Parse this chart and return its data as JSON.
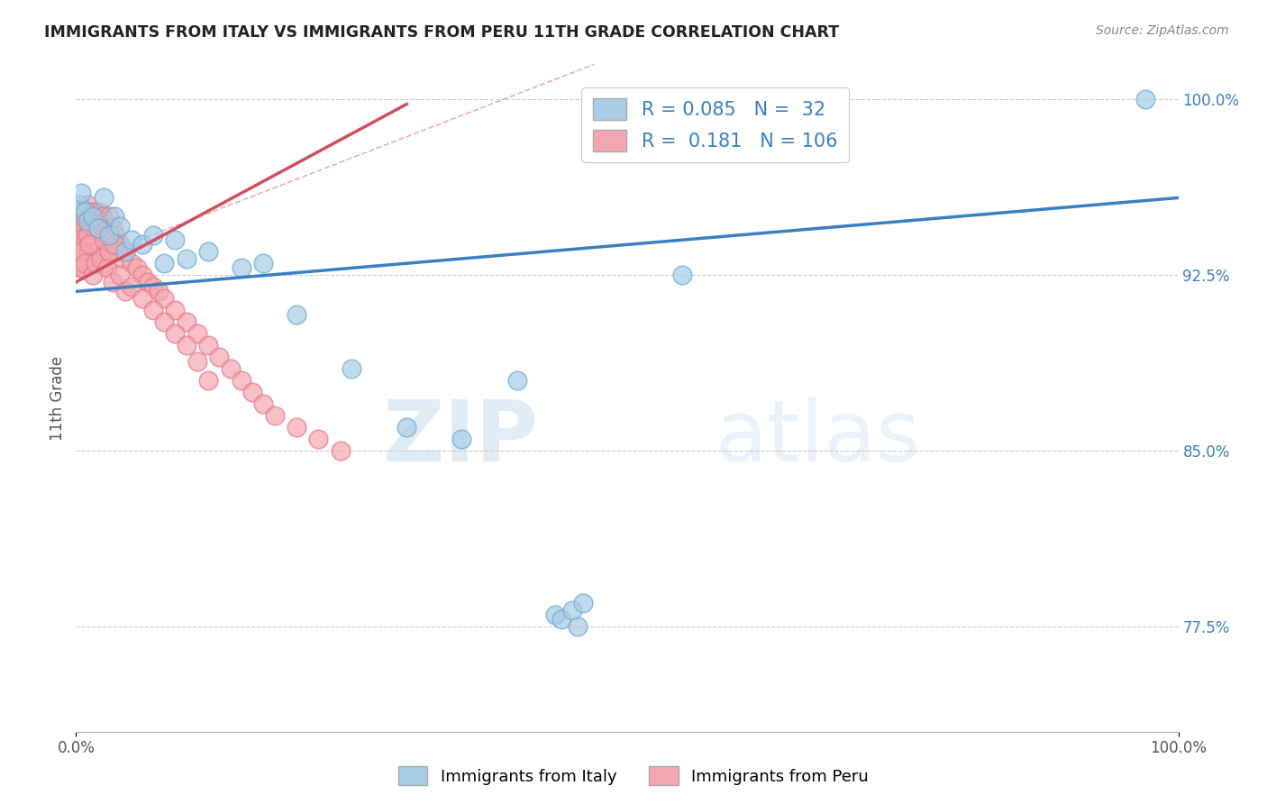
{
  "title": "IMMIGRANTS FROM ITALY VS IMMIGRANTS FROM PERU 11TH GRADE CORRELATION CHART",
  "source": "Source: ZipAtlas.com",
  "ylabel": "11th Grade",
  "right_ytick_labels": [
    "77.5%",
    "85.0%",
    "92.5%",
    "100.0%"
  ],
  "right_ytick_values": [
    77.5,
    85.0,
    92.5,
    100.0
  ],
  "legend_italy_r": "0.085",
  "legend_italy_n": "32",
  "legend_peru_r": "0.181",
  "legend_peru_n": "106",
  "italy_color": "#a8cce4",
  "peru_color": "#f4a7b0",
  "italy_line_color": "#3a7fc1",
  "peru_line_color": "#d05060",
  "italy_dot_edge": "#6baed6",
  "peru_dot_edge": "#e87a8a",
  "xmin": 0.0,
  "xmax": 100.0,
  "ymin": 73.0,
  "ymax": 101.5,
  "italy_x": [
    0.3,
    0.5,
    0.8,
    1.0,
    1.5,
    2.0,
    2.5,
    3.0,
    3.5,
    4.0,
    4.5,
    5.0,
    6.0,
    7.0,
    8.0,
    9.0,
    10.0,
    12.0,
    15.0,
    17.0,
    20.0,
    25.0,
    30.0,
    35.0,
    40.0,
    43.5,
    44.0,
    45.0,
    45.5,
    46.0,
    55.0,
    97.0
  ],
  "italy_y": [
    95.5,
    96.0,
    95.2,
    94.8,
    95.0,
    94.5,
    95.8,
    94.2,
    95.0,
    94.6,
    93.5,
    94.0,
    93.8,
    94.2,
    93.0,
    94.0,
    93.2,
    93.5,
    92.8,
    93.0,
    90.8,
    88.5,
    86.0,
    85.5,
    88.0,
    78.0,
    77.8,
    78.2,
    77.5,
    78.5,
    92.5,
    100.0
  ],
  "peru_x": [
    0.1,
    0.2,
    0.3,
    0.3,
    0.4,
    0.4,
    0.5,
    0.5,
    0.5,
    0.6,
    0.6,
    0.7,
    0.7,
    0.8,
    0.8,
    0.9,
    0.9,
    1.0,
    1.0,
    1.0,
    1.1,
    1.1,
    1.2,
    1.2,
    1.3,
    1.3,
    1.4,
    1.5,
    1.5,
    1.6,
    1.6,
    1.7,
    1.7,
    1.8,
    1.8,
    1.9,
    2.0,
    2.0,
    2.1,
    2.2,
    2.2,
    2.3,
    2.4,
    2.5,
    2.5,
    2.6,
    2.7,
    2.8,
    2.9,
    3.0,
    3.0,
    3.1,
    3.2,
    3.3,
    3.5,
    3.6,
    3.8,
    4.0,
    4.2,
    4.5,
    5.0,
    5.5,
    6.0,
    6.5,
    7.0,
    7.5,
    8.0,
    9.0,
    10.0,
    11.0,
    12.0,
    13.0,
    14.0,
    15.0,
    16.0,
    17.0,
    18.0,
    20.0,
    22.0,
    24.0,
    0.2,
    0.3,
    0.5,
    0.6,
    0.8,
    1.0,
    1.2,
    1.5,
    1.8,
    2.0,
    2.3,
    2.5,
    2.8,
    3.0,
    3.3,
    3.5,
    4.0,
    4.5,
    5.0,
    6.0,
    7.0,
    8.0,
    9.0,
    10.0,
    11.0,
    12.0
  ],
  "peru_y": [
    93.5,
    93.0,
    94.2,
    92.8,
    94.8,
    93.5,
    95.2,
    94.0,
    93.0,
    94.5,
    93.2,
    95.0,
    94.0,
    94.8,
    93.5,
    95.2,
    94.0,
    95.5,
    94.2,
    93.0,
    94.8,
    93.5,
    95.0,
    94.2,
    95.2,
    93.8,
    94.5,
    95.0,
    94.0,
    95.2,
    93.8,
    94.5,
    93.2,
    94.8,
    93.5,
    94.2,
    95.0,
    93.8,
    94.5,
    95.2,
    93.8,
    94.5,
    95.0,
    94.2,
    93.0,
    94.8,
    93.5,
    94.2,
    93.8,
    95.0,
    93.5,
    94.2,
    93.8,
    94.5,
    93.8,
    94.2,
    93.5,
    93.8,
    93.2,
    93.5,
    93.0,
    92.8,
    92.5,
    92.2,
    92.0,
    91.8,
    91.5,
    91.0,
    90.5,
    90.0,
    89.5,
    89.0,
    88.5,
    88.0,
    87.5,
    87.0,
    86.5,
    86.0,
    85.5,
    85.0,
    93.2,
    94.0,
    93.5,
    92.8,
    93.0,
    94.2,
    93.8,
    92.5,
    93.0,
    94.5,
    93.2,
    94.0,
    92.8,
    93.5,
    92.2,
    93.8,
    92.5,
    91.8,
    92.0,
    91.5,
    91.0,
    90.5,
    90.0,
    89.5,
    88.8,
    88.0
  ],
  "italy_line_start_x": 0.0,
  "italy_line_start_y": 91.8,
  "italy_line_end_x": 100.0,
  "italy_line_end_y": 95.8,
  "peru_line_start_x": 0.0,
  "peru_line_start_y": 92.2,
  "peru_line_end_x": 30.0,
  "peru_line_end_y": 99.8,
  "dash_start_x": 3.0,
  "dash_start_y": 93.5,
  "dash_end_x": 47.0,
  "dash_end_y": 101.5
}
